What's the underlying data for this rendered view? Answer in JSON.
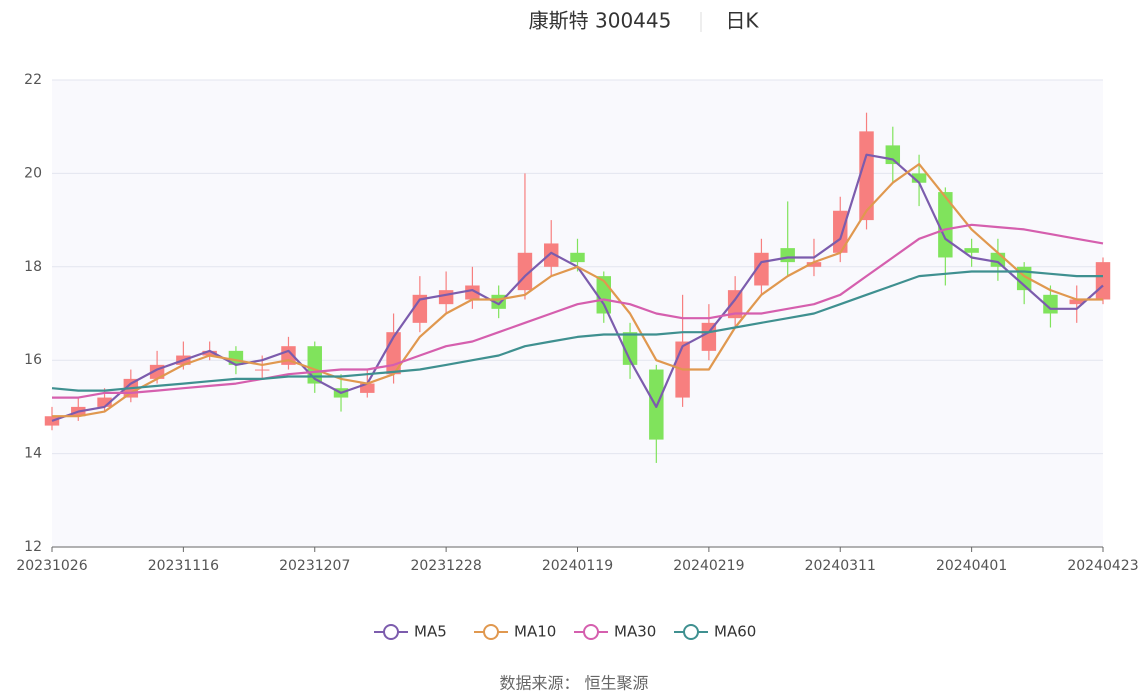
{
  "chart_data": {
    "type": "candlestick",
    "title": "康斯特 300445",
    "subtitle": "日K",
    "source": "数据来源： 恒生聚源",
    "categories": [
      "20231026",
      null,
      null,
      null,
      null,
      "20231116",
      null,
      null,
      null,
      null,
      "20231207",
      null,
      null,
      null,
      null,
      "20231228",
      null,
      null,
      null,
      null,
      "20240119",
      null,
      null,
      null,
      null,
      "20240219",
      null,
      null,
      null,
      null,
      "20240311",
      null,
      null,
      null,
      null,
      "20240401",
      null,
      null,
      null,
      null,
      "20240423"
    ],
    "open": [
      14.6,
      14.8,
      15.0,
      15.2,
      15.6,
      15.9,
      16.1,
      16.2,
      15.8,
      15.9,
      16.3,
      15.4,
      15.3,
      15.7,
      16.8,
      17.2,
      17.3,
      17.4,
      17.5,
      18.0,
      18.3,
      17.8,
      16.6,
      15.8,
      15.2,
      16.2,
      16.9,
      17.6,
      18.4,
      18.0,
      18.3,
      19.0,
      20.6,
      20.0,
      19.6,
      18.4,
      18.3,
      18.0,
      17.4,
      17.2,
      17.3
    ],
    "close": [
      14.8,
      15.0,
      15.2,
      15.6,
      15.9,
      16.1,
      16.2,
      15.9,
      15.8,
      16.3,
      15.5,
      15.2,
      15.5,
      16.6,
      17.4,
      17.5,
      17.6,
      17.1,
      18.3,
      18.5,
      18.1,
      17.0,
      15.9,
      14.3,
      16.4,
      16.8,
      17.5,
      18.3,
      18.1,
      18.1,
      19.2,
      20.9,
      20.2,
      19.8,
      18.2,
      18.3,
      18.0,
      17.5,
      17.0,
      17.3,
      18.1
    ],
    "low": [
      14.5,
      14.7,
      14.9,
      15.1,
      15.5,
      15.8,
      16.0,
      15.7,
      15.6,
      15.8,
      15.3,
      14.9,
      15.2,
      15.5,
      16.6,
      17.0,
      17.1,
      16.9,
      17.3,
      17.8,
      17.9,
      16.8,
      15.6,
      13.8,
      15.0,
      16.0,
      16.7,
      17.4,
      17.8,
      17.8,
      18.1,
      18.8,
      19.8,
      19.3,
      17.6,
      18.0,
      17.7,
      17.2,
      16.7,
      16.8,
      17.2
    ],
    "high": [
      15.0,
      15.2,
      15.4,
      15.8,
      16.2,
      16.4,
      16.4,
      16.3,
      16.1,
      16.5,
      16.4,
      15.7,
      15.8,
      17.0,
      17.8,
      17.9,
      18.0,
      17.6,
      20.0,
      19.0,
      18.6,
      17.9,
      16.8,
      15.9,
      17.4,
      17.2,
      17.8,
      18.6,
      19.4,
      18.6,
      19.5,
      21.3,
      21.0,
      20.4,
      19.7,
      18.6,
      18.6,
      18.1,
      17.6,
      17.6,
      18.2
    ],
    "up_color": "#f77f7f",
    "down_color": "#80e35c",
    "series": [
      {
        "name": "MA5",
        "color": "#7c5cad",
        "values": [
          14.7,
          14.9,
          15.0,
          15.5,
          15.8,
          16.0,
          16.2,
          15.9,
          16.0,
          16.2,
          15.6,
          15.3,
          15.5,
          16.5,
          17.3,
          17.4,
          17.5,
          17.2,
          17.8,
          18.3,
          18.0,
          17.2,
          16.0,
          15.0,
          16.3,
          16.6,
          17.3,
          18.1,
          18.2,
          18.2,
          18.6,
          20.4,
          20.3,
          19.8,
          18.6,
          18.2,
          18.1,
          17.6,
          17.1,
          17.1,
          17.6
        ]
      },
      {
        "name": "MA10",
        "color": "#e0984f",
        "values": [
          14.8,
          14.8,
          14.9,
          15.3,
          15.6,
          15.9,
          16.1,
          16.0,
          15.9,
          16.0,
          15.8,
          15.6,
          15.5,
          15.7,
          16.5,
          17.0,
          17.3,
          17.3,
          17.4,
          17.8,
          18.0,
          17.7,
          17.0,
          16.0,
          15.8,
          15.8,
          16.7,
          17.4,
          17.8,
          18.1,
          18.3,
          19.2,
          19.8,
          20.2,
          19.5,
          18.8,
          18.3,
          17.8,
          17.5,
          17.3,
          17.3
        ]
      },
      {
        "name": "MA30",
        "color": "#d55fae",
        "values": [
          15.2,
          15.2,
          15.3,
          15.3,
          15.35,
          15.4,
          15.45,
          15.5,
          15.6,
          15.7,
          15.75,
          15.8,
          15.8,
          15.9,
          16.1,
          16.3,
          16.4,
          16.6,
          16.8,
          17.0,
          17.2,
          17.3,
          17.2,
          17.0,
          16.9,
          16.9,
          17.0,
          17.0,
          17.1,
          17.2,
          17.4,
          17.8,
          18.2,
          18.6,
          18.8,
          18.9,
          18.85,
          18.8,
          18.7,
          18.6,
          18.5
        ]
      },
      {
        "name": "MA60",
        "color": "#3f9090",
        "values": [
          15.4,
          15.35,
          15.35,
          15.4,
          15.45,
          15.5,
          15.55,
          15.6,
          15.6,
          15.65,
          15.65,
          15.65,
          15.7,
          15.75,
          15.8,
          15.9,
          16.0,
          16.1,
          16.3,
          16.4,
          16.5,
          16.55,
          16.55,
          16.55,
          16.6,
          16.6,
          16.7,
          16.8,
          16.9,
          17.0,
          17.2,
          17.4,
          17.6,
          17.8,
          17.85,
          17.9,
          17.9,
          17.9,
          17.85,
          17.8,
          17.8
        ]
      }
    ],
    "ylim": [
      12,
      22
    ],
    "yticks": [
      12,
      14,
      16,
      18,
      20,
      22
    ],
    "grid": true
  }
}
